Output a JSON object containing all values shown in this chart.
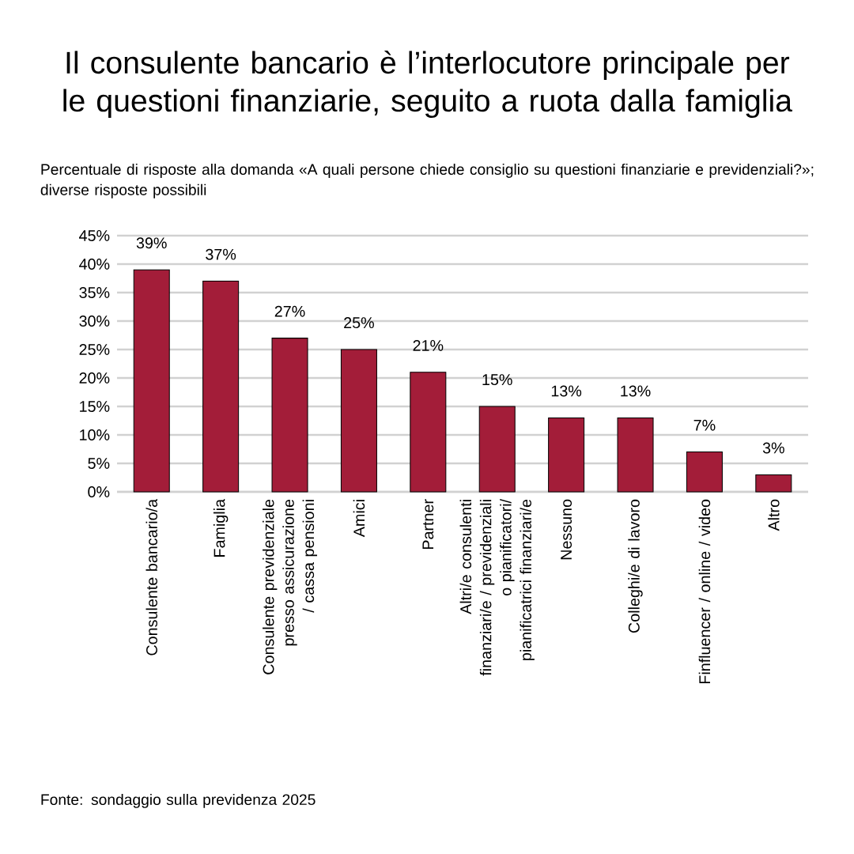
{
  "chart_data": {
    "type": "bar",
    "title": "Il consulente bancario è l’interlocutore principale per le questioni finanziarie, seguito a ruota dalla famiglia",
    "subtitle": "Percentuale di risposte alla domanda «A quali persone chiede consiglio su questioni finanziarie e previdenziali?»; diverse risposte possibili",
    "categories": [
      "Consulente bancario/a",
      "Famiglia",
      "Consulente previdenziale presso assicurazione / cassa pensioni",
      "Amici",
      "Partner",
      "Altri/e consulenti finanziari/e / previdenziali o pianificatori/ pianificatrici finanziari/e",
      "Nessuno",
      "Colleghi/e di lavoro",
      "Finfluencer / online / video",
      "Altro"
    ],
    "values": [
      39,
      37,
      27,
      25,
      21,
      15,
      13,
      13,
      7,
      3
    ],
    "value_labels": [
      "39%",
      "37%",
      "27%",
      "25%",
      "21%",
      "15%",
      "13%",
      "13%",
      "7%",
      "3%"
    ],
    "color": "#a31d39",
    "ylim": [
      0,
      45
    ],
    "yticks": [
      {
        "value": 0,
        "label": "0%"
      },
      {
        "value": 5,
        "label": "5%"
      },
      {
        "value": 10,
        "label": "10%"
      },
      {
        "value": 15,
        "label": "15%"
      },
      {
        "value": 20,
        "label": "20%"
      },
      {
        "value": 25,
        "label": "25%"
      },
      {
        "value": 30,
        "label": "30%"
      },
      {
        "value": 35,
        "label": "35%"
      },
      {
        "value": 40,
        "label": "40%"
      },
      {
        "value": 45,
        "label": "45%"
      }
    ],
    "grid": "y",
    "annotations": [
      "Fonte: sondaggio sulla previdenza 2025"
    ]
  }
}
